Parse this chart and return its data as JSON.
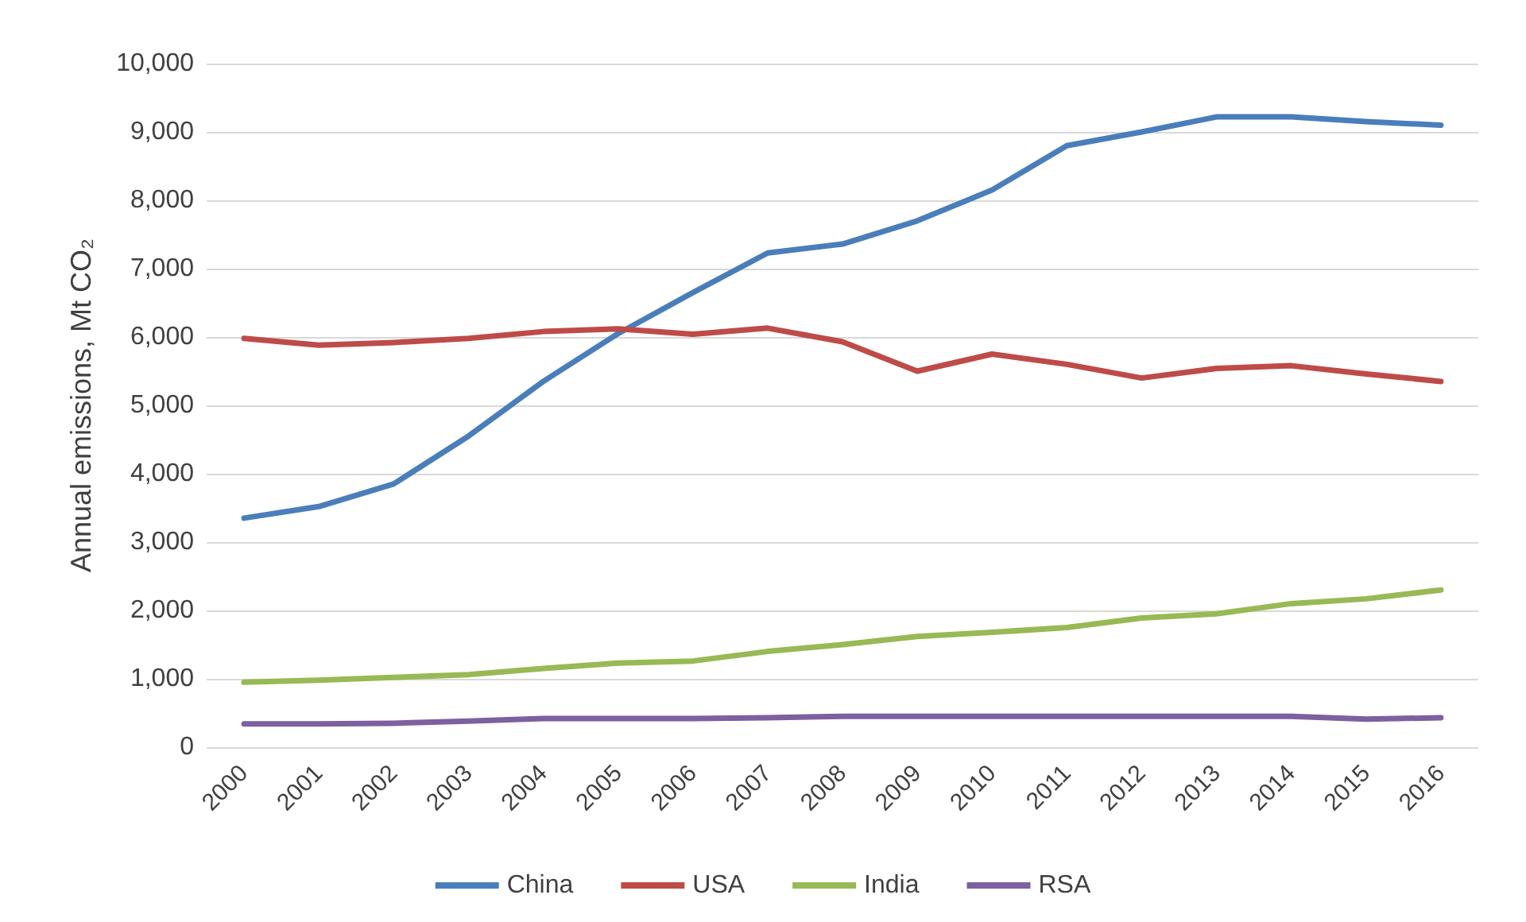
{
  "chart_data": {
    "type": "line",
    "ylabel": "Annual emissions, Mt CO₂",
    "categories": [
      "2000",
      "2001",
      "2002",
      "2003",
      "2004",
      "2005",
      "2006",
      "2007",
      "2008",
      "2009",
      "2010",
      "2011",
      "2012",
      "2013",
      "2014",
      "2015",
      "2016"
    ],
    "series": [
      {
        "name": "China",
        "color": "#4a7ebb",
        "values": [
          3350,
          3520,
          3850,
          4550,
          5350,
          6050,
          6650,
          7230,
          7360,
          7700,
          8150,
          8800,
          9000,
          9220,
          9220,
          9150,
          9100
        ]
      },
      {
        "name": "USA",
        "color": "#be4b48",
        "values": [
          5980,
          5880,
          5920,
          5980,
          6080,
          6120,
          6040,
          6130,
          5930,
          5500,
          5750,
          5600,
          5400,
          5540,
          5580,
          5460,
          5350
        ]
      },
      {
        "name": "India",
        "color": "#98b954",
        "values": [
          950,
          980,
          1020,
          1060,
          1150,
          1230,
          1260,
          1400,
          1500,
          1620,
          1680,
          1750,
          1890,
          1950,
          2100,
          2170,
          2300
        ]
      },
      {
        "name": "RSA",
        "color": "#7d60a0",
        "values": [
          340,
          340,
          350,
          380,
          420,
          420,
          420,
          430,
          450,
          450,
          450,
          450,
          450,
          450,
          450,
          410,
          430
        ]
      }
    ],
    "ylim": [
      0,
      10000
    ],
    "yticks": [
      0,
      {
        "value": 1000,
        "label": "1,000"
      },
      {
        "value": 2000,
        "label": "2,000"
      },
      {
        "value": 3000,
        "label": "3,000"
      },
      {
        "value": 4000,
        "label": "4,000"
      },
      {
        "value": 5000,
        "label": "5,000"
      },
      {
        "value": 6000,
        "label": "6,000"
      },
      {
        "value": 7000,
        "label": "7,000"
      },
      {
        "value": 8000,
        "label": "8,000"
      },
      {
        "value": 9000,
        "label": "9,000"
      },
      {
        "value": 10000,
        "label": "10,000"
      }
    ],
    "grid": "y",
    "legend": "bottom",
    "marker": "none",
    "line_style": "solid"
  }
}
